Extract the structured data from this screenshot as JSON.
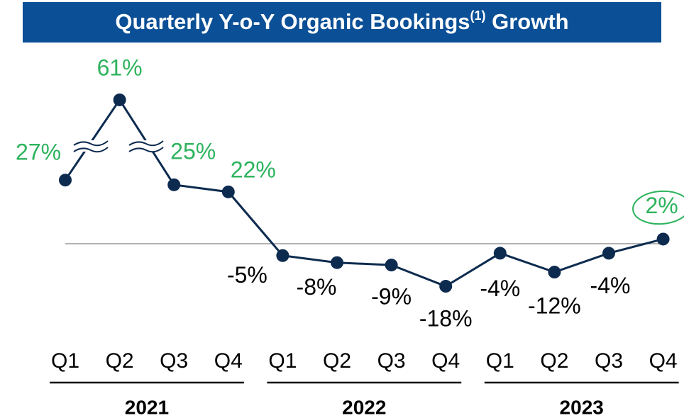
{
  "chart_data": {
    "type": "line",
    "title": {
      "main": "Quarterly Y-o-Y Organic Bookings",
      "sup": "(1)",
      "end": " Growth"
    },
    "categories": [
      "Q1",
      "Q2",
      "Q3",
      "Q4",
      "Q1",
      "Q2",
      "Q3",
      "Q4",
      "Q1",
      "Q2",
      "Q3",
      "Q4"
    ],
    "groups": [
      {
        "label": "2021",
        "span": 4
      },
      {
        "label": "2022",
        "span": 4
      },
      {
        "label": "2023",
        "span": 4
      }
    ],
    "values": [
      27,
      61,
      25,
      22,
      -5,
      -8,
      -9,
      -18,
      -4,
      -12,
      -4,
      2
    ],
    "value_labels": [
      "27%",
      "61%",
      "25%",
      "22%",
      "-5%",
      "-8%",
      "-9%",
      "-18%",
      "-4%",
      "-12%",
      "-4%",
      "2%"
    ],
    "color": "#0d2b4f",
    "positive_color": "#2db35d",
    "negative_color": "#000000",
    "ylim": [
      -30,
      70
    ]
  }
}
